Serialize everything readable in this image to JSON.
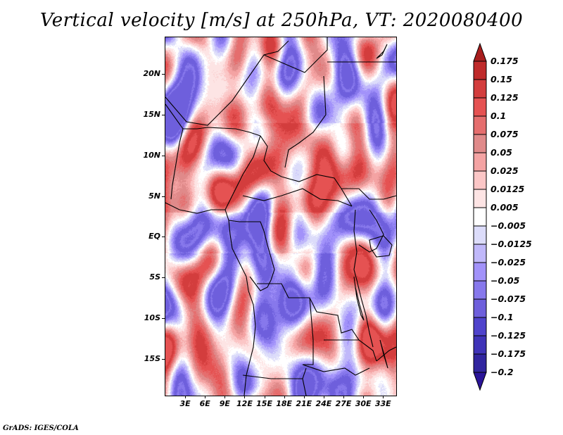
{
  "title": "Vertical velocity [m/s] at 250hPa, VT: 2020080400",
  "footer": "GrADS: IGES/COLA",
  "map": {
    "variable": "Vertical velocity",
    "units": "m/s",
    "level": "250hPa",
    "valid_time": "2020080400",
    "lat_range": [
      -19.5,
      24.5
    ],
    "lon_range": [
      0,
      35
    ],
    "lat_ticks": [
      {
        "value": 20,
        "label": "20N"
      },
      {
        "value": 15,
        "label": "15N"
      },
      {
        "value": 10,
        "label": "10N"
      },
      {
        "value": 5,
        "label": "5N"
      },
      {
        "value": 0,
        "label": "EQ"
      },
      {
        "value": -5,
        "label": "5S"
      },
      {
        "value": -10,
        "label": "10S"
      },
      {
        "value": -15,
        "label": "15S"
      }
    ],
    "lon_ticks": [
      {
        "value": 3,
        "label": "3E"
      },
      {
        "value": 6,
        "label": "6E"
      },
      {
        "value": 9,
        "label": "9E"
      },
      {
        "value": 12,
        "label": "12E"
      },
      {
        "value": 15,
        "label": "15E"
      },
      {
        "value": 18,
        "label": "18E"
      },
      {
        "value": 21,
        "label": "21E"
      },
      {
        "value": 24,
        "label": "24E"
      },
      {
        "value": 27,
        "label": "27E"
      },
      {
        "value": 30,
        "label": "30E"
      },
      {
        "value": 33,
        "label": "33E"
      }
    ]
  },
  "colorbar": {
    "levels": [
      {
        "label": "0.175",
        "color": "#a81e1e"
      },
      {
        "label": "0.15",
        "color": "#bf2a2a"
      },
      {
        "label": "0.125",
        "color": "#d33d3d"
      },
      {
        "label": "0.1",
        "color": "#e55252"
      },
      {
        "label": "0.075",
        "color": "#e56e6e"
      },
      {
        "label": "0.05",
        "color": "#e08a8a"
      },
      {
        "label": "0.025",
        "color": "#f4a3a3"
      },
      {
        "label": "0.0125",
        "color": "#fbc6c6"
      },
      {
        "label": "0.005",
        "color": "#fde4e4"
      },
      {
        "label": "-0.005",
        "color": "#ffffff"
      },
      {
        "label": "-0.0125",
        "color": "#dcdcfa"
      },
      {
        "label": "-0.025",
        "color": "#c0b8fa"
      },
      {
        "label": "-0.05",
        "color": "#a292fa"
      },
      {
        "label": "-0.075",
        "color": "#8778ec"
      },
      {
        "label": "-0.1",
        "color": "#6e5fdc"
      },
      {
        "label": "-0.125",
        "color": "#4f43cc"
      },
      {
        "label": "-0.175",
        "color": "#3f33b8"
      },
      {
        "label": "-0.2",
        "color": "#31259f"
      }
    ],
    "top_arrow_color": "#a81e1e",
    "bottom_arrow_color": "#2a1498",
    "middle_box_color": "#ffffff"
  }
}
